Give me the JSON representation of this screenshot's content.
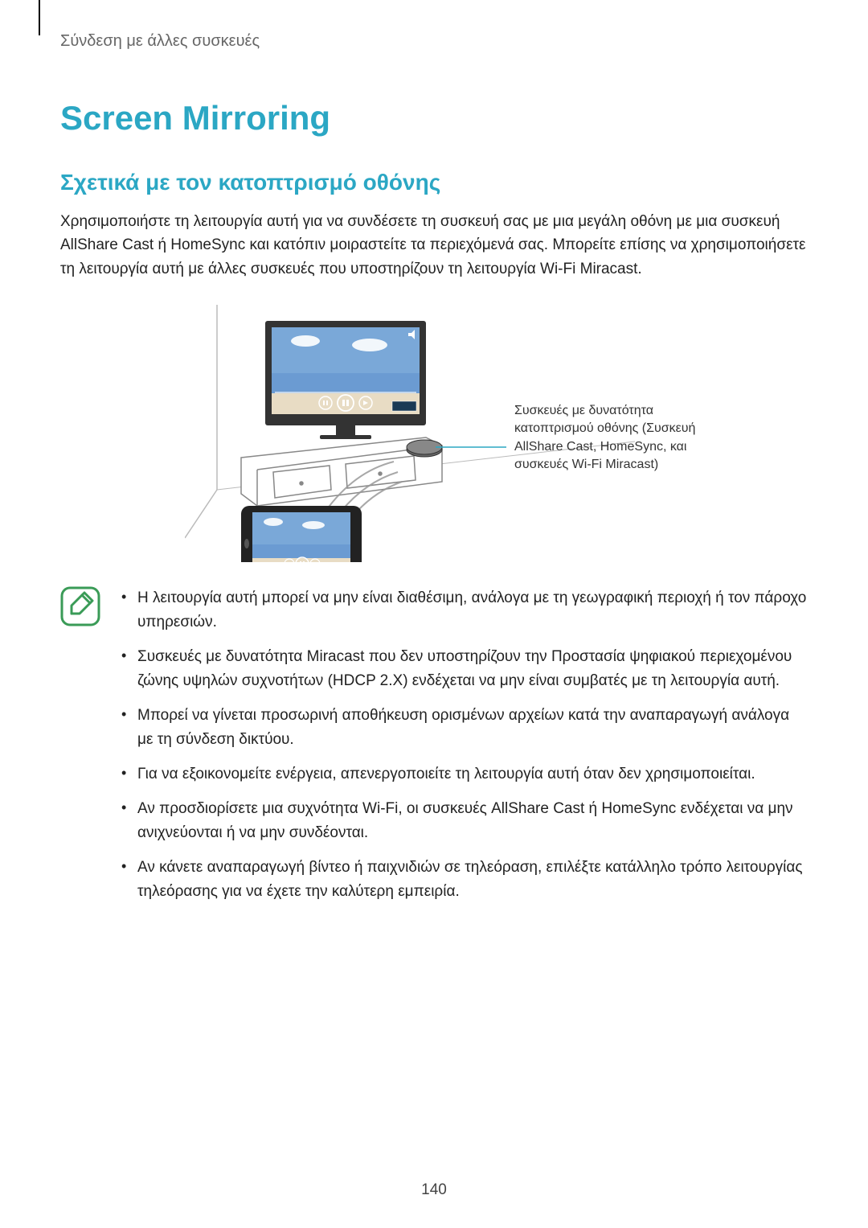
{
  "colors": {
    "title": "#2ba7c4",
    "subtitle": "#2ba7c4",
    "body_text": "#222222",
    "breadcrumb": "#666666",
    "note_icon_border": "#3a9b57",
    "note_icon_fill": "#3a9b57",
    "note_icon_bg": "#ffffff",
    "callout_line": "#2ba7c4"
  },
  "breadcrumb": "Σύνδεση με άλλες συσκευές",
  "title": "Screen Mirroring",
  "subtitle": "Σχετικά με τον κατοπτρισμό οθόνης",
  "intro": "Χρησιμοποιήστε τη λειτουργία αυτή για να συνδέσετε τη συσκευή σας με μια μεγάλη οθόνη με μια συσκευή AllShare Cast ή HomeSync και κατόπιν μοιραστείτε τα περιεχόμενά σας. Μπορείτε επίσης να χρησιμοποιήσετε τη λειτουργία αυτή με άλλες συσκευές που υποστηρίζουν τη λειτουργία Wi-Fi Miracast.",
  "callout": "Συσκευές με δυνατότητα κατοπτρισμού οθόνης (Συσκευή AllShare Cast, HomeSync, και συσκευές Wi-Fi Miracast)",
  "notes": [
    "Η λειτουργία αυτή μπορεί να μην είναι διαθέσιμη, ανάλογα με τη γεωγραφική περιοχή ή τον πάροχο υπηρεσιών.",
    "Συσκευές με δυνατότητα Miracast που δεν υποστηρίζουν την Προστασία ψηφιακού περιεχομένου ζώνης υψηλών συχνοτήτων (HDCP 2.X) ενδέχεται να μην είναι συμβατές με τη λειτουργία αυτή.",
    "Μπορεί να γίνεται προσωρινή αποθήκευση ορισμένων αρχείων κατά την αναπαραγωγή ανάλογα με τη σύνδεση δικτύου.",
    "Για να εξοικονομείτε ενέργεια, απενεργοποιείτε τη λειτουργία αυτή όταν δεν χρησιμοποιείται.",
    "Αν προσδιορίσετε μια συχνότητα Wi-Fi, οι συσκευές AllShare Cast ή HomeSync ενδέχεται να μην ανιχνεύονται ή να μην συνδέονται.",
    "Αν κάνετε αναπαραγωγή βίντεο ή παιχνιδιών σε τηλεόραση, επιλέξτε κατάλληλο τρόπο λειτουργίας τηλεόρασης για να έχετε την καλύτερη εμπειρία."
  ],
  "page_number": "140",
  "diagram": {
    "type": "illustration",
    "description": "TV on a stand receiving wireless signal from a tablet, with a dongle on the stand",
    "tv_screen_color": "#3a6a9a",
    "tv_frame_color": "#333333",
    "stand_color": "#ffffff",
    "stand_stroke": "#888888",
    "tablet_frame": "#222222",
    "tablet_screen": "#2f5c85",
    "wave_color": "#999999",
    "beach_sky": "#7aa8d8",
    "beach_water": "#6b9bd2",
    "beach_sand": "#e8dcc4"
  }
}
